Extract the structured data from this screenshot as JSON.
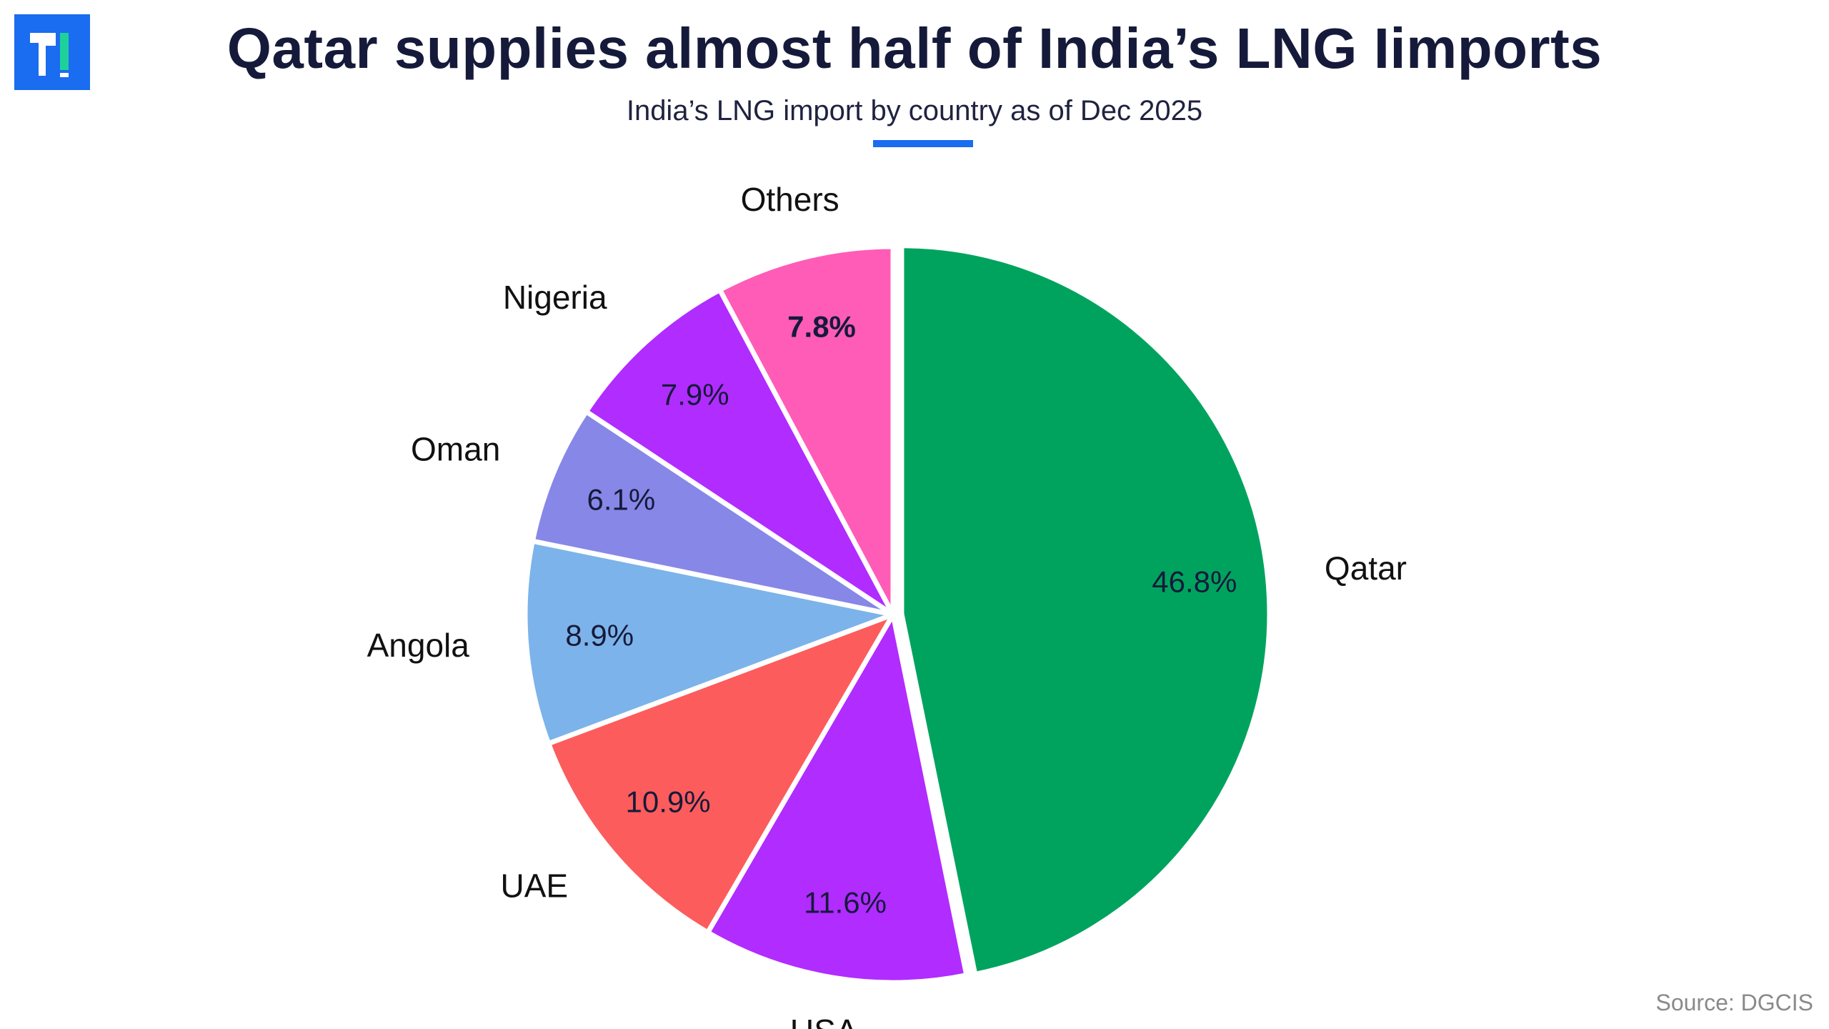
{
  "header": {
    "title": "Qatar supplies almost half of India’s LNG Iimports",
    "subtitle": "India’s LNG import by country as of Dec 2025"
  },
  "footer": {
    "source": "Source: DGCIS"
  },
  "colors": {
    "title": "#161a3a",
    "accent": "#1a6cf0",
    "logo_bg": "#1a6cf0",
    "logo_mark": "#ffffff",
    "logo_dot": "#1ed19a"
  },
  "chart_data": {
    "type": "pie",
    "start_angle_deg": 0,
    "direction": "clockwise",
    "exploded": "Qatar",
    "slices": [
      {
        "label": "Qatar",
        "value": 46.8,
        "value_label": "46.8%",
        "color": "#00a35e"
      },
      {
        "label": "USA",
        "value": 11.6,
        "value_label": "11.6%",
        "color": "#b12cff"
      },
      {
        "label": "UAE",
        "value": 10.9,
        "value_label": "10.9%",
        "color": "#fd5c5c"
      },
      {
        "label": "Angola",
        "value": 8.9,
        "value_label": "8.9%",
        "color": "#7cb3ea"
      },
      {
        "label": "Oman",
        "value": 6.1,
        "value_label": "6.1%",
        "color": "#8787e8"
      },
      {
        "label": "Nigeria",
        "value": 7.9,
        "value_label": "7.9%",
        "color": "#b12cff"
      },
      {
        "label": "Others",
        "value": 7.8,
        "value_label": "7.8%",
        "color": "#ff5cb8",
        "value_label_bold": true
      }
    ]
  }
}
